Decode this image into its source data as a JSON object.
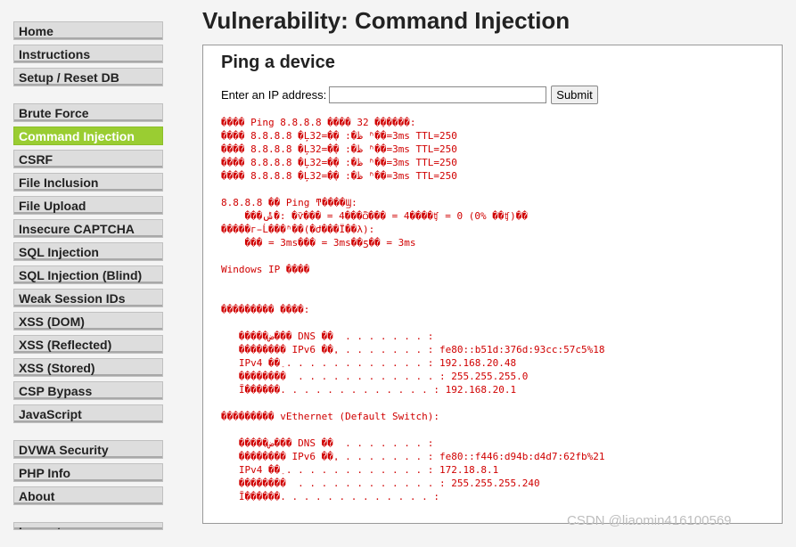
{
  "menu": {
    "group1": [
      "Home",
      "Instructions",
      "Setup / Reset DB"
    ],
    "group2": [
      "Brute Force",
      "Command Injection",
      "CSRF",
      "File Inclusion",
      "File Upload",
      "Insecure CAPTCHA",
      "SQL Injection",
      "SQL Injection (Blind)",
      "Weak Session IDs",
      "XSS (DOM)",
      "XSS (Reflected)",
      "XSS (Stored)",
      "CSP Bypass",
      "JavaScript"
    ],
    "group3": [
      "DVWA Security",
      "PHP Info",
      "About"
    ],
    "group4": [
      "Logout"
    ],
    "selected": "Command Injection",
    "selected_color": "#9acd32"
  },
  "page": {
    "title": "Vulnerability: Command Injection"
  },
  "panel": {
    "title": "Ping a device",
    "ip_label": "Enter an IP address:",
    "ip_value": "",
    "submit_label": "Submit"
  },
  "output_lines": [
    "���� Ping 8.8.8.8 ���� 32 �ֽ�����:",
    "���� 8.8.8.8 �Ļظ�: �ֽ�=32 ʱ��=3ms TTL=250",
    "���� 8.8.8.8 �Ļظ�: �ֽ�=32 ʱ��=3ms TTL=250",
    "���� 8.8.8.8 �Ļظ�: �ֽ�=32 ʱ��=3ms TTL=250",
    "���� 8.8.8.8 �Ļظ�: �ֽ�=32 ʱ��=3ms TTL=250",
    "",
    "8.8.8.8 �� Ping ͳ����Ϣ:",
    "    ���ݰ�: �ѷ��� = 4���ѽ��� = 4����ʧ = 0 (0% ��ʧ)��",
    "�����г̵Ĺ���ʱ��(�Ժ���Ϊ��λ):",
    "    ��� = 3ms��� = 3ms��ƽ�� = 3ms",
    "",
    "Windows IP ����",
    "",
    "",
    "��������� ����:",
    "",
    "   �����ض��� DNS ��  . . . . . . . :",
    "   �������� IPv6 ��ַ. . . . . . . . : fe80::b51d:376d:93cc:57c5%18",
    "   IPv4 ��ַ . . . . . . . . . . . . : 192.168.20.48",
    "   ��������  . . . . . . . . . . . . : 255.255.255.0",
    "   Ĭ������. . . . . . . . . . . . . : 192.168.20.1",
    "",
    "��������� vEthernet (Default Switch):",
    "",
    "   �����ض��� DNS ��  . . . . . . . :",
    "   �������� IPv6 ��ַ. . . . . . . . : fe80::f446:d94b:d4d7:62fb%21",
    "   IPv4 ��ַ . . . . . . . . . . . . : 172.18.8.1",
    "   ��������  . . . . . . . . . . . . : 255.255.255.240",
    "   Ĭ������. . . . . . . . . . . . . :"
  ],
  "watermark": "CSDN @liaomin416100569"
}
